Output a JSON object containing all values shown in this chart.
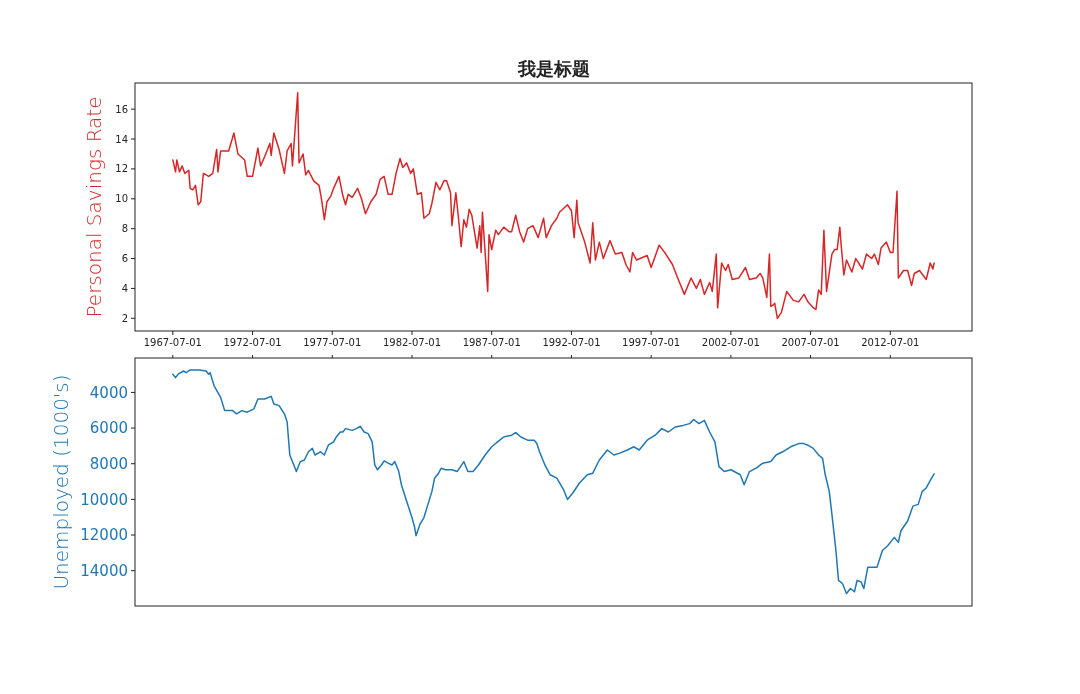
{
  "chart_data": [
    {
      "type": "line",
      "title": "我是标题",
      "ylabel": "Personal Savings Rate",
      "xlim": [
        "1965-02-15",
        "2017-08-15"
      ],
      "ylim": [
        1.15,
        17.75
      ],
      "yticks": [
        2,
        4,
        6,
        8,
        10,
        12,
        14,
        16
      ],
      "xticks": [
        "1967-07-01",
        "1972-07-01",
        "1977-07-01",
        "1982-07-01",
        "1987-07-01",
        "1992-07-01",
        "1997-07-01",
        "2002-07-01",
        "2007-07-01",
        "2012-07-01"
      ],
      "x": [
        "1967-07",
        "1967-09",
        "1967-10",
        "1967-12",
        "1968-02",
        "1968-04",
        "1968-07",
        "1968-08",
        "1968-10",
        "1968-12",
        "1969-02",
        "1969-04",
        "1969-06",
        "1969-10",
        "1970-01",
        "1970-04",
        "1970-05",
        "1970-07",
        "1971-01",
        "1971-05",
        "1971-08",
        "1972-01",
        "1972-03",
        "1972-07",
        "1972-11",
        "1973-01",
        "1973-04",
        "1973-08",
        "1973-09",
        "1973-11",
        "1974-03",
        "1974-07",
        "1974-09",
        "1974-12",
        "1975-01",
        "1975-05",
        "1975-06",
        "1975-09",
        "1975-11",
        "1976-01",
        "1976-05",
        "1976-09",
        "1976-11",
        "1977-01",
        "1977-03",
        "1977-06",
        "1977-08",
        "1977-12",
        "1978-03",
        "1978-05",
        "1978-07",
        "1978-10",
        "1979-02",
        "1979-05",
        "1979-08",
        "1979-12",
        "1980-04",
        "1980-07",
        "1980-10",
        "1981-01",
        "1981-04",
        "1981-07",
        "1981-10",
        "1981-12",
        "1982-03",
        "1982-06",
        "1982-08",
        "1982-11",
        "1983-02",
        "1983-04",
        "1983-08",
        "1983-10",
        "1984-01",
        "1984-04",
        "1984-07",
        "1984-09",
        "1984-12",
        "1985-01",
        "1985-04",
        "1985-06",
        "1985-08",
        "1985-10",
        "1985-12",
        "1986-02",
        "1986-04",
        "1986-08",
        "1986-10",
        "1986-11",
        "1986-12",
        "1987-02",
        "1987-04",
        "1987-05",
        "1987-07",
        "1987-10",
        "1987-12",
        "1988-04",
        "1988-08",
        "1988-10",
        "1989-01",
        "1989-04",
        "1989-07",
        "1989-10",
        "1990-02",
        "1990-06",
        "1990-10",
        "1990-12",
        "1991-04",
        "1991-08",
        "1991-10",
        "1992-04",
        "1992-07",
        "1992-09",
        "1992-11",
        "1992-12",
        "1993-05",
        "1993-09",
        "1993-11",
        "1994-01",
        "1994-04",
        "1994-07",
        "1994-12",
        "1995-04",
        "1995-09",
        "1995-12",
        "1996-03",
        "1996-05",
        "1996-08",
        "1997-04",
        "1997-07",
        "1998-01",
        "1998-06",
        "1998-11",
        "1999-03",
        "1999-08",
        "2000-01",
        "2000-05",
        "2000-08",
        "2000-11",
        "2001-03",
        "2001-05",
        "2001-08",
        "2001-09",
        "2001-12",
        "2002-03",
        "2002-05",
        "2002-08",
        "2003-01",
        "2003-06",
        "2003-09",
        "2004-02",
        "2004-05",
        "2004-07",
        "2004-10",
        "2004-12",
        "2005-01",
        "2005-03",
        "2005-04",
        "2005-06",
        "2005-09",
        "2006-01",
        "2006-06",
        "2006-10",
        "2007-02",
        "2007-05",
        "2007-09",
        "2007-11",
        "2008-01",
        "2008-03",
        "2008-05",
        "2008-07",
        "2008-11",
        "2009-01",
        "2009-03",
        "2009-05",
        "2009-06",
        "2009-08",
        "2009-10",
        "2010-02",
        "2010-05",
        "2010-10",
        "2011-01",
        "2011-05",
        "2011-07",
        "2011-10",
        "2011-12",
        "2012-04",
        "2012-07",
        "2012-09",
        "2012-12",
        "2013-01",
        "2013-05",
        "2013-08",
        "2013-11",
        "2014-01",
        "2014-05",
        "2014-10",
        "2015-01",
        "2015-03",
        "2015-04"
      ],
      "series": [
        {
          "color": "#d62728",
          "values": [
            12.6,
            11.8,
            12.6,
            11.8,
            12.2,
            11.7,
            11.9,
            10.7,
            10.6,
            10.9,
            9.6,
            9.8,
            11.7,
            11.5,
            11.7,
            13.3,
            11.8,
            13.2,
            13.2,
            14.4,
            13.0,
            12.6,
            11.5,
            11.5,
            13.4,
            12.2,
            12.8,
            13.7,
            12.9,
            14.4,
            13.3,
            11.7,
            13.2,
            13.7,
            12.2,
            17.1,
            12.4,
            13.0,
            11.6,
            11.9,
            11.2,
            10.9,
            9.9,
            8.6,
            9.8,
            10.2,
            10.7,
            11.5,
            10.2,
            9.6,
            10.3,
            10.1,
            10.7,
            10.0,
            9.0,
            9.8,
            10.3,
            11.3,
            11.5,
            10.3,
            10.3,
            11.7,
            12.7,
            12.1,
            12.4,
            11.7,
            12.0,
            10.3,
            10.4,
            8.7,
            9.0,
            9.7,
            11.1,
            10.6,
            11.2,
            11.2,
            10.4,
            8.2,
            10.4,
            8.7,
            6.8,
            8.6,
            8.1,
            9.3,
            8.9,
            6.7,
            8.2,
            6.4,
            9.1,
            6.4,
            3.8,
            7.6,
            6.6,
            7.9,
            7.6,
            8.1,
            7.8,
            7.8,
            8.9,
            7.8,
            7.1,
            8.0,
            8.2,
            7.4,
            8.7,
            7.4,
            8.2,
            8.7,
            9.1,
            9.6,
            9.2,
            7.4,
            9.9,
            8.4,
            7.1,
            5.7,
            8.4,
            5.9,
            7.1,
            6.0,
            7.2,
            6.3,
            6.4,
            5.6,
            5.1,
            6.4,
            5.9,
            6.2,
            5.4,
            6.9,
            6.3,
            5.6,
            4.7,
            3.6,
            4.7,
            4.0,
            4.6,
            3.6,
            4.4,
            3.8,
            6.3,
            2.7,
            5.7,
            5.2,
            5.6,
            4.6,
            4.7,
            5.4,
            4.6,
            4.7,
            5.0,
            4.7,
            3.4,
            6.3,
            2.8,
            2.9,
            3.0,
            2.0,
            2.4,
            3.8,
            3.2,
            3.1,
            3.6,
            3.1,
            2.7,
            2.6,
            3.9,
            3.6,
            7.9,
            3.8,
            6.3,
            6.6,
            6.6,
            8.1,
            6.9,
            4.9,
            5.9,
            5.1,
            6.0,
            5.3,
            6.3,
            6.0,
            6.3,
            5.6,
            6.7,
            7.1,
            6.4,
            6.4,
            10.5,
            4.7,
            5.2,
            5.2,
            4.2,
            5.0,
            5.2,
            4.6,
            5.7,
            5.3,
            5.7
          ]
        }
      ]
    },
    {
      "type": "line",
      "ylabel": "Unemployed (1000's)",
      "xlim": [
        "1965-02-15",
        "2017-08-15"
      ],
      "ylim": [
        15980,
        2070
      ],
      "yticks": [
        4000,
        6000,
        8000,
        10000,
        12000,
        14000
      ],
      "xticks": [
        "1967-07-01",
        "1972-07-01",
        "1977-07-01",
        "1982-07-01",
        "1987-07-01",
        "1992-07-01",
        "1997-07-01",
        "2002-07-01",
        "2007-07-01",
        "2012-07-01"
      ],
      "tick_labels": "y",
      "x": [
        "1967-07",
        "1967-09",
        "1967-11",
        "1968-03",
        "1968-05",
        "1968-08",
        "1969-03",
        "1969-08",
        "1969-10",
        "1969-11",
        "1970-02",
        "1970-07",
        "1970-10",
        "1971-04",
        "1971-07",
        "1971-11",
        "1972-03",
        "1972-08",
        "1972-11",
        "1973-04",
        "1973-09",
        "1973-11",
        "1974-03",
        "1974-07",
        "1974-09",
        "1974-11",
        "1975-02",
        "1975-04",
        "1975-07",
        "1975-10",
        "1976-01",
        "1976-04",
        "1976-06",
        "1976-10",
        "1977-01",
        "1977-04",
        "1977-08",
        "1977-10",
        "1978-01",
        "1978-03",
        "1978-05",
        "1978-10",
        "1979-01",
        "1979-04",
        "1979-07",
        "1979-10",
        "1980-01",
        "1980-03",
        "1980-05",
        "1980-08",
        "1980-10",
        "1981-01",
        "1981-04",
        "1981-06",
        "1981-09",
        "1981-11",
        "1982-03",
        "1982-07",
        "1982-09",
        "1982-10",
        "1983-01",
        "1983-04",
        "1983-07",
        "1983-10",
        "1983-12",
        "1984-03",
        "1984-05",
        "1984-08",
        "1985-01",
        "1985-05",
        "1985-10",
        "1986-01",
        "1986-05",
        "1986-09",
        "1987-02",
        "1987-07",
        "1988-01",
        "1988-04",
        "1988-10",
        "1989-01",
        "1989-05",
        "1989-10",
        "1990-03",
        "1990-05",
        "1990-07",
        "1990-11",
        "1991-03",
        "1991-08",
        "1992-01",
        "1992-04",
        "1992-08",
        "1993-01",
        "1993-07",
        "1993-11",
        "1994-04",
        "1994-10",
        "1995-03",
        "1995-07",
        "1996-01",
        "1996-06",
        "1996-10",
        "1997-04",
        "1997-10",
        "1998-03",
        "1998-08",
        "1999-01",
        "1999-07",
        "1999-12",
        "2000-03",
        "2000-07",
        "2000-11",
        "2001-03",
        "2001-07",
        "2001-10",
        "2002-02",
        "2002-07",
        "2003-02",
        "2003-05",
        "2003-09",
        "2004-02",
        "2004-07",
        "2005-01",
        "2005-05",
        "2005-10",
        "2006-04",
        "2006-10",
        "2007-02",
        "2007-05",
        "2007-09",
        "2008-01",
        "2008-04",
        "2008-06",
        "2008-09",
        "2008-11",
        "2009-02",
        "2009-04",
        "2009-07",
        "2009-10",
        "2010-01",
        "2010-04",
        "2010-06",
        "2010-09",
        "2010-11",
        "2011-02",
        "2011-06",
        "2011-09",
        "2012-01",
        "2012-05",
        "2012-10",
        "2013-01",
        "2013-03",
        "2013-08",
        "2013-12",
        "2014-04",
        "2014-07",
        "2014-10",
        "2015-02",
        "2015-04"
      ],
      "series": [
        {
          "color": "#1f77b4",
          "values": [
            2980,
            3170,
            2980,
            2800,
            2890,
            2740,
            2740,
            2800,
            2980,
            2890,
            3630,
            4280,
            5020,
            5020,
            5200,
            5020,
            5110,
            4920,
            4370,
            4370,
            4220,
            4650,
            4740,
            5200,
            5660,
            7510,
            8070,
            8440,
            7880,
            7790,
            7330,
            7140,
            7510,
            7330,
            7510,
            6960,
            6770,
            6500,
            6220,
            6220,
            6030,
            6130,
            6030,
            5900,
            6220,
            6310,
            6770,
            8070,
            8340,
            8070,
            7840,
            7970,
            8070,
            7880,
            8440,
            9180,
            10100,
            11020,
            11580,
            12040,
            11390,
            11020,
            10280,
            9550,
            8810,
            8530,
            8250,
            8340,
            8340,
            8440,
            7880,
            8440,
            8440,
            8070,
            7510,
            7050,
            6680,
            6500,
            6400,
            6260,
            6500,
            6680,
            6680,
            6870,
            7330,
            8070,
            8620,
            8810,
            9450,
            10010,
            9640,
            9080,
            8620,
            8530,
            7790,
            7230,
            7510,
            7420,
            7230,
            7050,
            7230,
            6680,
            6400,
            6030,
            6220,
            5940,
            5850,
            5750,
            5520,
            5750,
            5570,
            6220,
            6770,
            8160,
            8440,
            8340,
            8620,
            9180,
            8440,
            8250,
            7970,
            7880,
            7510,
            7330,
            7050,
            6870,
            6870,
            6960,
            7140,
            7510,
            7700,
            8620,
            9550,
            10840,
            12870,
            14540,
            14720,
            15280,
            15000,
            15180,
            14540,
            14630,
            15000,
            13800,
            13800,
            13800,
            12870,
            12600,
            12130,
            12410,
            11760,
            11210,
            10380,
            10280,
            9550,
            9360,
            8810,
            8570
          ]
        }
      ]
    }
  ]
}
